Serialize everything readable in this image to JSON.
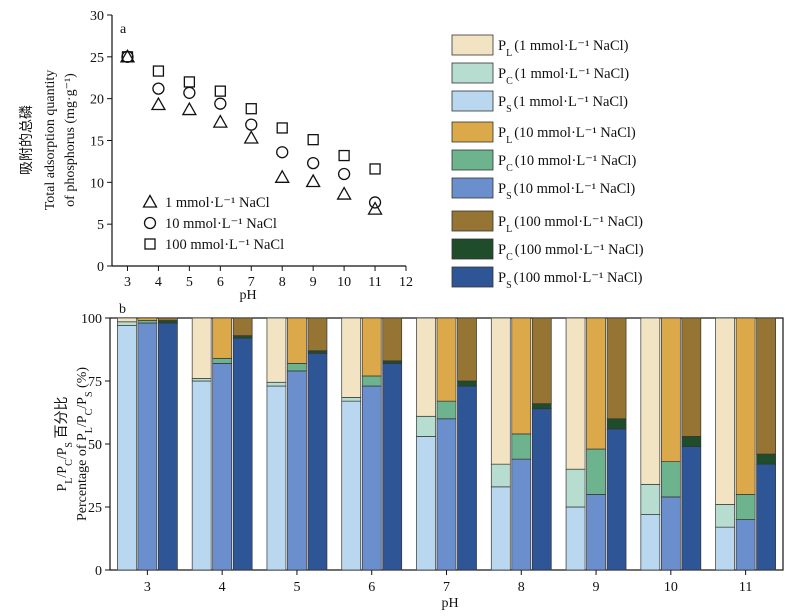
{
  "colors": {
    "P_L_1": "#f2e3c3",
    "P_C_1": "#b7ddd1",
    "P_S_1": "#b9d7ee",
    "P_L_10": "#dba94a",
    "P_C_10": "#6db38e",
    "P_S_10": "#6b8fcc",
    "P_L_100": "#967534",
    "P_C_100": "#1f4d2b",
    "P_S_100": "#2e5596"
  },
  "panel_a": {
    "letter": "a",
    "ylabel_cn": "吸附的总磷",
    "ylabel_en1": "Total adsorption quantity",
    "ylabel_en2": "of phosphorus (mg·g⁻¹)",
    "xlabel": "pH",
    "x_ticks": [
      "3",
      "4",
      "5",
      "6",
      "7",
      "8",
      "9",
      "10",
      "11",
      "12"
    ],
    "y_ticks": [
      "0",
      "5",
      "10",
      "15",
      "20",
      "25",
      "30"
    ],
    "legend": [
      {
        "marker": "triangle",
        "label": "1 mmol·L⁻¹ NaCl"
      },
      {
        "marker": "circle",
        "label": "10 mmol·L⁻¹ NaCl"
      },
      {
        "marker": "square",
        "label": "100 mmol·L⁻¹ NaCl"
      }
    ]
  },
  "panel_b": {
    "letter": "b",
    "ylabel_cn": "P_L/P_C/P_S 百分比",
    "ylabel_en": "Percentage of P_L/P_C/P_S (%)",
    "xlabel": "pH",
    "y_ticks": [
      "0",
      "25",
      "50",
      "75",
      "100"
    ]
  },
  "legend": [
    {
      "key": "P_L_1",
      "sub": "L",
      "label": "(1 mmol·L⁻¹ NaCl)"
    },
    {
      "key": "P_C_1",
      "sub": "C",
      "label": "(1 mmol·L⁻¹ NaCl)"
    },
    {
      "key": "P_S_1",
      "sub": "S",
      "label": "(1 mmol·L⁻¹ NaCl)"
    },
    {
      "key": "P_L_10",
      "sub": "L",
      "label": "(10 mmol·L⁻¹ NaCl)"
    },
    {
      "key": "P_C_10",
      "sub": "C",
      "label": "(10 mmol·L⁻¹ NaCl)"
    },
    {
      "key": "P_S_10",
      "sub": "S",
      "label": "(10 mmol·L⁻¹ NaCl)"
    },
    {
      "key": "P_L_100",
      "sub": "L",
      "label": "(100 mmol·L⁻¹ NaCl)"
    },
    {
      "key": "P_C_100",
      "sub": "C",
      "label": "(100 mmol·L⁻¹ NaCl)"
    },
    {
      "key": "P_S_100",
      "sub": "S",
      "label": "(100 mmol·L⁻¹ NaCl)"
    }
  ],
  "chart_data": [
    {
      "type": "scatter",
      "panel": "a",
      "xlabel": "pH",
      "ylabel": "Total adsorption quantity of phosphorus (mg·g⁻¹)",
      "xlim": [
        2.5,
        12
      ],
      "ylim": [
        0,
        30
      ],
      "series": [
        {
          "name": "1 mmol·L⁻¹ NaCl",
          "marker": "triangle",
          "x": [
            3,
            4,
            5,
            6,
            7,
            8,
            9,
            10,
            11
          ],
          "y": [
            25.0,
            19.3,
            18.7,
            17.2,
            15.3,
            10.6,
            10.1,
            8.6,
            6.8
          ]
        },
        {
          "name": "10 mmol·L⁻¹ NaCl",
          "marker": "circle",
          "x": [
            3,
            4,
            5,
            6,
            7,
            8,
            9,
            10,
            11
          ],
          "y": [
            25.0,
            21.2,
            20.7,
            19.4,
            16.9,
            13.6,
            12.3,
            11.0,
            7.6
          ]
        },
        {
          "name": "100 mmol·L⁻¹ NaCl",
          "marker": "square",
          "x": [
            3,
            4,
            5,
            6,
            7,
            8,
            9,
            10,
            11
          ],
          "y": [
            25.0,
            23.3,
            22.0,
            20.9,
            18.8,
            16.5,
            15.1,
            13.2,
            11.6
          ]
        }
      ]
    },
    {
      "type": "bar",
      "stacked": true,
      "panel": "b",
      "xlabel": "pH",
      "ylabel": "Percentage of P_L/P_C/P_S (%)",
      "ylim": [
        0,
        100
      ],
      "categories": [
        "3",
        "4",
        "5",
        "6",
        "7",
        "8",
        "9",
        "10",
        "11"
      ],
      "groups": [
        {
          "name": "1 mmol·L⁻¹ NaCl",
          "P_S": [
            97,
            75,
            73,
            67,
            53,
            33,
            25,
            22,
            17
          ],
          "P_C": [
            1.5,
            1,
            1.5,
            1.5,
            8,
            9,
            15,
            12,
            9
          ],
          "P_L": [
            1.5,
            24,
            25.5,
            31.5,
            39,
            58,
            60,
            66,
            74
          ]
        },
        {
          "name": "10 mmol·L⁻¹ NaCl",
          "P_S": [
            98,
            82,
            79,
            73,
            60,
            44,
            30,
            29,
            20
          ],
          "P_C": [
            1,
            2,
            3,
            4,
            7,
            10,
            18,
            14,
            10
          ],
          "P_L": [
            1,
            16,
            18,
            23,
            33,
            46,
            52,
            57,
            70
          ]
        },
        {
          "name": "100 mmol·L⁻¹ NaCl",
          "P_S": [
            98,
            92,
            86,
            82,
            73,
            64,
            56,
            49,
            42
          ],
          "P_C": [
            1,
            1,
            1,
            1,
            2,
            2,
            4,
            4,
            4
          ],
          "P_L": [
            1,
            7,
            13,
            17,
            25,
            34,
            40,
            47,
            54
          ]
        }
      ]
    }
  ]
}
